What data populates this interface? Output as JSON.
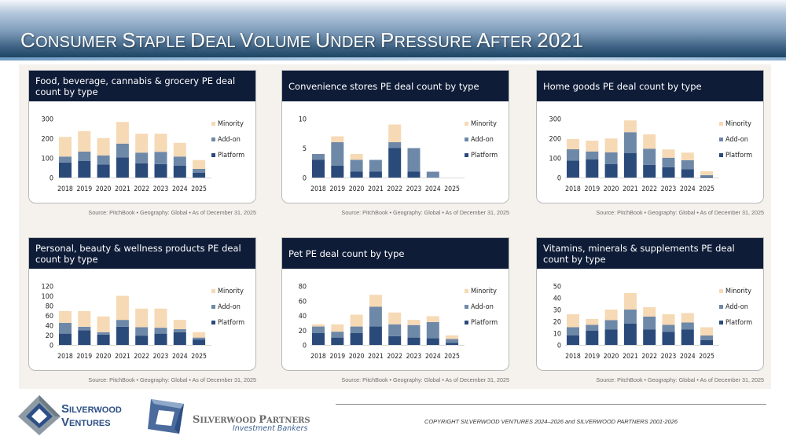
{
  "page": {
    "title_parts": [
      {
        "cap": "C",
        "rest": "ONSUMER "
      },
      {
        "cap": "S",
        "rest": "TAPLE "
      },
      {
        "cap": "D",
        "rest": "EAL "
      },
      {
        "cap": "V",
        "rest": "OLUME "
      },
      {
        "cap": "U",
        "rest": "NDER "
      },
      {
        "cap": "P",
        "rest": "RESSURE "
      },
      {
        "cap": "A",
        "rest": "FTER "
      },
      {
        "cap": "2021",
        "rest": ""
      }
    ],
    "title": "Consumer Staple Deal Volume Under Pressure After 2021"
  },
  "colors": {
    "platform": "#2a4a7a",
    "addon": "#6e88a8",
    "minority": "#f6d9b5",
    "header": "#0e1c38"
  },
  "legend": {
    "minority": "Minority",
    "addon": "Add-on",
    "platform": "Platform"
  },
  "source_note": "Source: PitchBook  •  Geography: Global  •  As of December 31, 2025",
  "chart_data": [
    {
      "type": "bar",
      "stacked": true,
      "title": "Food, beverage, cannabis & grocery PE deal count by type",
      "categories": [
        "2018",
        "2019",
        "2020",
        "2021",
        "2022",
        "2023",
        "2024",
        "2025"
      ],
      "yticks": [
        0,
        100,
        200,
        300
      ],
      "ylim": [
        0,
        300
      ],
      "series": [
        {
          "name": "Platform",
          "values": [
            77,
            84,
            67,
            103,
            73,
            69,
            60,
            24
          ]
        },
        {
          "name": "Add-on",
          "values": [
            30,
            48,
            46,
            70,
            54,
            62,
            47,
            20
          ]
        },
        {
          "name": "Minority",
          "values": [
            100,
            104,
            88,
            110,
            96,
            92,
            70,
            45
          ]
        }
      ],
      "legend": "right"
    },
    {
      "type": "bar",
      "stacked": true,
      "title": "Convenience stores PE deal count by type",
      "categories": [
        "2018",
        "2019",
        "2020",
        "2021",
        "2022",
        "2023",
        "2024",
        "2025"
      ],
      "yticks": [
        0,
        5,
        10
      ],
      "ylim": [
        0,
        10
      ],
      "series": [
        {
          "name": "Platform",
          "values": [
            3,
            2,
            1,
            1,
            5,
            1,
            0,
            0
          ]
        },
        {
          "name": "Add-on",
          "values": [
            1,
            4,
            2,
            2,
            1,
            4,
            1,
            0
          ]
        },
        {
          "name": "Minority",
          "values": [
            0,
            1,
            1,
            0,
            3,
            0,
            0,
            0
          ]
        }
      ],
      "legend": "right"
    },
    {
      "type": "bar",
      "stacked": true,
      "title": "Home goods PE deal count by type",
      "categories": [
        "2018",
        "2019",
        "2020",
        "2021",
        "2022",
        "2023",
        "2024",
        "2025"
      ],
      "yticks": [
        0,
        100,
        200,
        300
      ],
      "ylim": [
        0,
        300
      ],
      "series": [
        {
          "name": "Platform",
          "values": [
            87,
            92,
            68,
            124,
            65,
            53,
            43,
            4
          ]
        },
        {
          "name": "Add-on",
          "values": [
            57,
            41,
            60,
            107,
            82,
            48,
            45,
            8
          ]
        },
        {
          "name": "Minority",
          "values": [
            52,
            55,
            71,
            60,
            73,
            42,
            39,
            20
          ]
        }
      ],
      "legend": "right"
    },
    {
      "type": "bar",
      "stacked": true,
      "title": "Personal, beauty & wellness products PE deal count by type",
      "categories": [
        "2018",
        "2019",
        "2020",
        "2021",
        "2022",
        "2023",
        "2024",
        "2025"
      ],
      "yticks": [
        0,
        20,
        40,
        60,
        80,
        100,
        120
      ],
      "ylim": [
        0,
        120
      ],
      "series": [
        {
          "name": "Platform",
          "values": [
            23,
            30,
            21,
            37,
            19,
            23,
            26,
            11
          ]
        },
        {
          "name": "Add-on",
          "values": [
            22,
            7,
            5,
            14,
            17,
            12,
            6,
            4
          ]
        },
        {
          "name": "Minority",
          "values": [
            24,
            32,
            32,
            49,
            38,
            39,
            19,
            11
          ]
        }
      ],
      "legend": "right"
    },
    {
      "type": "bar",
      "stacked": true,
      "title": "Pet PE deal count by type",
      "categories": [
        "2018",
        "2019",
        "2020",
        "2021",
        "2022",
        "2023",
        "2024",
        "2025"
      ],
      "yticks": [
        0,
        20,
        40,
        60,
        80
      ],
      "ylim": [
        0,
        80
      ],
      "series": [
        {
          "name": "Platform",
          "values": [
            16,
            10,
            16,
            25,
            12,
            10,
            9,
            3
          ]
        },
        {
          "name": "Add-on",
          "values": [
            9,
            8,
            9,
            27,
            16,
            17,
            22,
            5
          ]
        },
        {
          "name": "Minority",
          "values": [
            3,
            10,
            16,
            16,
            16,
            7,
            8,
            5
          ]
        }
      ],
      "legend": "right"
    },
    {
      "type": "bar",
      "stacked": true,
      "title": "Vitamins, minerals & supplements PE deal count by type",
      "categories": [
        "2018",
        "2019",
        "2020",
        "2021",
        "2022",
        "2023",
        "2024",
        "2025"
      ],
      "yticks": [
        0,
        10,
        20,
        30,
        40,
        50
      ],
      "ylim": [
        0,
        50
      ],
      "series": [
        {
          "name": "Platform",
          "values": [
            8,
            12,
            13,
            18,
            13,
            11,
            13,
            4
          ]
        },
        {
          "name": "Add-on",
          "values": [
            7,
            5,
            8,
            12,
            11,
            6,
            6,
            4
          ]
        },
        {
          "name": "Minority",
          "values": [
            11,
            5,
            9,
            14,
            8,
            9,
            8,
            7
          ]
        }
      ],
      "legend": "right"
    }
  ],
  "footer": {
    "copyright": "COPYRIGHT SILVERWOOD VENTURES 2024–2026 and SILVERWOOD PARTNERS 2001-2026",
    "logo1": {
      "line1_cap": "S",
      "line1_rest": "ILVERWOOD",
      "line2_cap": "V",
      "line2_rest": "ENTURES"
    },
    "logo2": {
      "name_cap1": "S",
      "name_rest1": "ILVERWOOD ",
      "name_cap2": "P",
      "name_rest2": "ARTNERS",
      "tagline": "Investment Bankers"
    }
  }
}
